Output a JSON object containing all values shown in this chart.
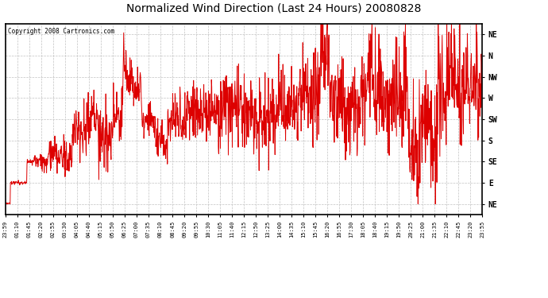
{
  "title": "Normalized Wind Direction (Last 24 Hours) 20080828",
  "copyright_text": "Copyright 2008 Cartronics.com",
  "line_color": "#dd0000",
  "bg_color": "#ffffff",
  "grid_color": "#bbbbbb",
  "ytick_labels": [
    "NE",
    "N",
    "NW",
    "W",
    "SW",
    "S",
    "SE",
    "E",
    "NE"
  ],
  "ytick_values": [
    9,
    8,
    7,
    6,
    5,
    4,
    3,
    2,
    1
  ],
  "ylim": [
    0.5,
    9.5
  ],
  "xtick_labels": [
    "23:59",
    "01:10",
    "01:45",
    "02:20",
    "02:55",
    "03:30",
    "04:05",
    "04:40",
    "05:15",
    "05:50",
    "06:25",
    "07:00",
    "07:35",
    "08:10",
    "08:45",
    "09:20",
    "09:55",
    "10:30",
    "11:05",
    "11:40",
    "12:15",
    "12:50",
    "13:25",
    "14:00",
    "14:35",
    "15:10",
    "15:45",
    "16:20",
    "16:55",
    "17:30",
    "18:05",
    "18:40",
    "19:15",
    "19:50",
    "20:25",
    "21:00",
    "21:35",
    "22:10",
    "22:45",
    "23:20",
    "23:55"
  ]
}
